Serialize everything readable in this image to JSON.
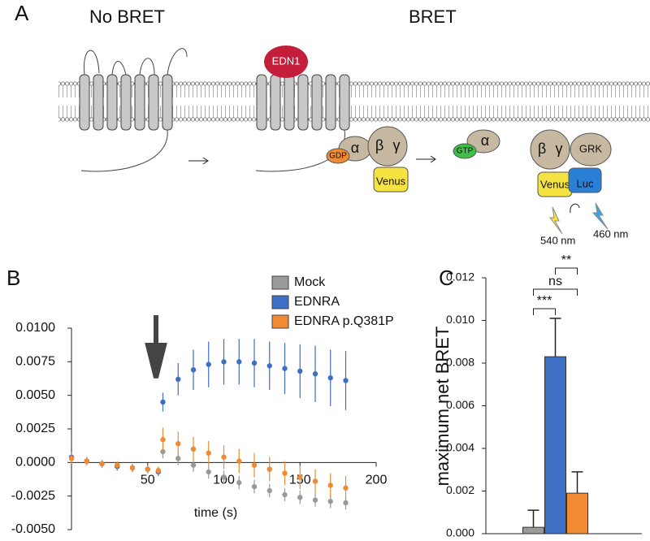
{
  "panels": {
    "a": "A",
    "b": "B",
    "c": "C"
  },
  "diagram": {
    "left_title": "No BRET",
    "right_title": "BRET",
    "ligand": "EDN1",
    "gdp": "GDP",
    "alpha": "α",
    "beta": "β",
    "gamma": "γ",
    "venus": "Venus",
    "gtp": "GTP",
    "alpha_free": "α",
    "beta_2": "β",
    "gamma_2": "γ",
    "grk": "GRK",
    "venus_2": "Venus",
    "luc": "Luc",
    "emission_venus": "540 nm",
    "emission_luc": "460 nm"
  },
  "chart_data": [
    {
      "type": "scatter",
      "xlabel": "time (s)",
      "x": [
        0,
        10,
        20,
        30,
        40,
        50,
        57,
        60,
        70,
        80,
        90,
        100,
        110,
        120,
        130,
        140,
        150,
        160,
        170,
        180
      ],
      "xlim": [
        0,
        200
      ],
      "xticks": [
        50,
        100,
        150,
        200
      ],
      "ylim": [
        -0.005,
        0.01
      ],
      "yticks": [
        {
          "value": -0.005,
          "label": "-0.0050"
        },
        {
          "value": -0.0025,
          "label": "-0.0025"
        },
        {
          "value": 0,
          "label": "0.0000"
        },
        {
          "value": 0.0025,
          "label": "0.0025"
        },
        {
          "value": 0.005,
          "label": "0.0050"
        },
        {
          "value": 0.0075,
          "label": "0.0075"
        },
        {
          "value": 0.01,
          "label": "0.0100"
        }
      ],
      "legend": "top-right",
      "series": [
        {
          "name": "Mock",
          "color": "#9a9a9a",
          "values": [
            0.0003,
            0.0001,
            -0.0001,
            -0.0003,
            -0.0004,
            -0.0005,
            -0.0007,
            0.0008,
            0.0003,
            -0.0002,
            -0.0007,
            -0.0011,
            -0.0015,
            -0.0018,
            -0.0021,
            -0.0024,
            -0.0026,
            -0.0028,
            -0.0029,
            -0.003
          ],
          "errors": [
            0.0004,
            0.0003,
            0.0003,
            0.0003,
            0.0003,
            0.0003,
            0.0003,
            0.0005,
            0.0005,
            0.0005,
            0.0005,
            0.0005,
            0.0005,
            0.0005,
            0.0005,
            0.0005,
            0.0005,
            0.0005,
            0.0005,
            0.0005
          ]
        },
        {
          "name": "EDNRA",
          "color": "#3d6fc4",
          "values": [
            0.0004,
            0.0001,
            -0.0001,
            -0.0003,
            -0.0004,
            -0.0005,
            -0.0007,
            0.0045,
            0.0062,
            0.0069,
            0.0073,
            0.0075,
            0.0075,
            0.0074,
            0.0072,
            0.007,
            0.0068,
            0.0066,
            0.0063,
            0.0061
          ],
          "errors": [
            0.0004,
            0.0003,
            0.0003,
            0.0003,
            0.0003,
            0.0003,
            0.0003,
            0.0007,
            0.0012,
            0.0015,
            0.0017,
            0.0017,
            0.0017,
            0.0018,
            0.0018,
            0.0019,
            0.002,
            0.0021,
            0.0021,
            0.0022
          ]
        },
        {
          "name": "EDNRA p.Q381P",
          "color": "#f08a33",
          "values": [
            0.0003,
            0.0001,
            -0.0001,
            -0.0002,
            -0.0004,
            -0.0005,
            -0.0006,
            0.0017,
            0.0014,
            0.001,
            0.0007,
            0.0004,
            0.0001,
            -0.0002,
            -0.0005,
            -0.0008,
            -0.0011,
            -0.0014,
            -0.0017,
            -0.0019
          ],
          "errors": [
            0.0004,
            0.0003,
            0.0003,
            0.0003,
            0.0003,
            0.0003,
            0.0003,
            0.0009,
            0.0009,
            0.0009,
            0.0009,
            0.0009,
            0.0009,
            0.0009,
            0.0009,
            0.0009,
            0.0009,
            0.0009,
            0.0009,
            0.0009
          ]
        }
      ]
    },
    {
      "type": "bar",
      "ylabel": "maximum net BRET",
      "categories": [
        null,
        null,
        null
      ],
      "values": [
        0.0003,
        0.0083,
        0.0019
      ],
      "errors": [
        0.0008,
        0.0018,
        0.001
      ],
      "colors": [
        "#9a9a9a",
        "#3d6fc4",
        "#f08a33"
      ],
      "ylim": [
        0,
        0.012
      ],
      "yticks": [
        {
          "value": 0,
          "label": "0.000"
        },
        {
          "value": 0.002,
          "label": "0.002"
        },
        {
          "value": 0.004,
          "label": "0.004"
        },
        {
          "value": 0.006,
          "label": "0.006"
        },
        {
          "value": 0.008,
          "label": "0.008"
        },
        {
          "value": 0.01,
          "label": "0.010"
        },
        {
          "value": 0.012,
          "label": "0.012"
        }
      ],
      "annotations": [
        "***",
        "ns",
        "**"
      ]
    }
  ]
}
